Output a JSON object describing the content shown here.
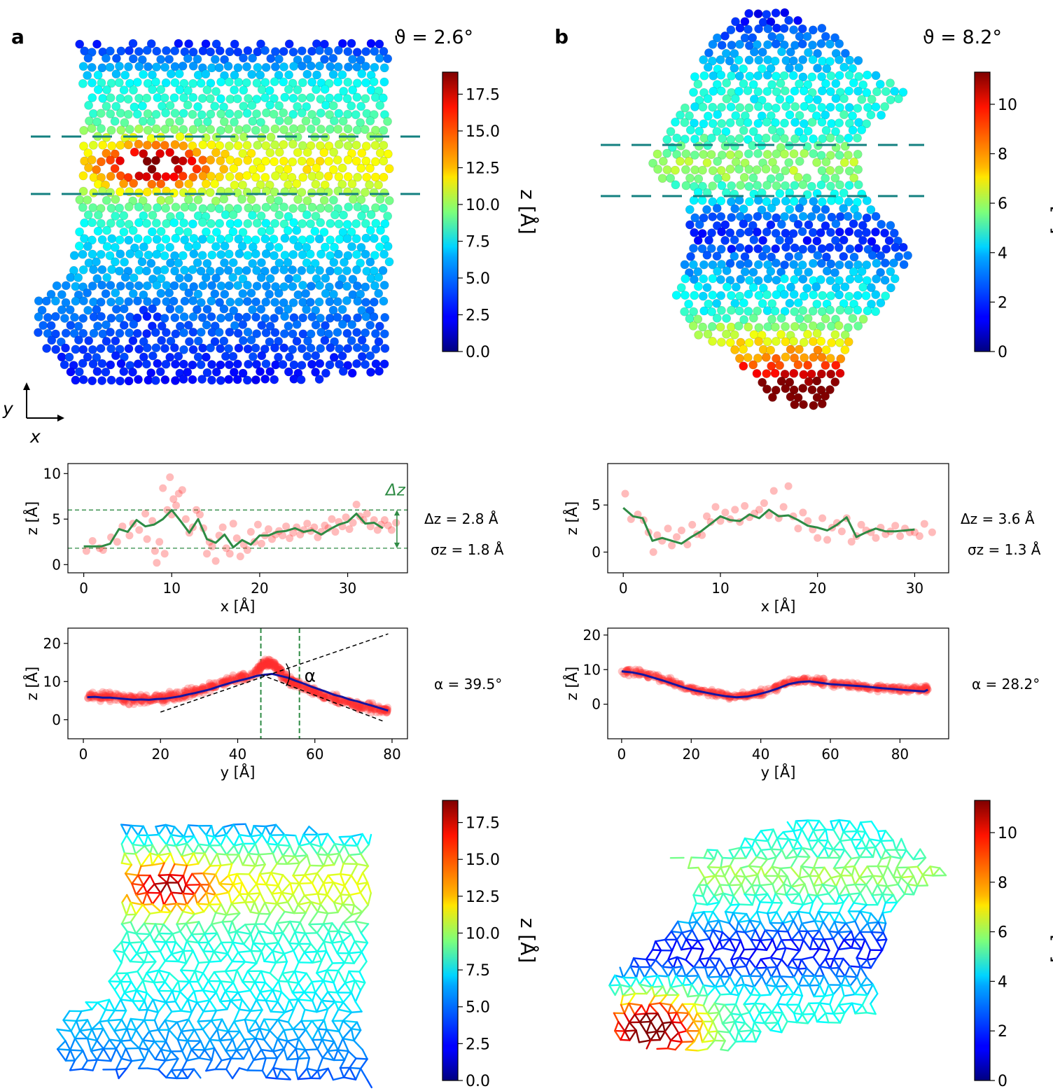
{
  "panels": {
    "a": {
      "letter": "a",
      "theta": "ϑ = 2.6°",
      "axis_indicator": {
        "x": "x",
        "y": "y"
      },
      "stats": {
        "dz": "Δz = 2.8 Å",
        "sigma": "σz = 1.8 Å",
        "alpha": "α = 39.5°"
      },
      "delta_z_label": "Δz",
      "alpha_label": "α"
    },
    "b": {
      "letter": "b",
      "theta": "ϑ = 8.2°",
      "stats": {
        "dz": "Δz = 3.6 Å",
        "sigma": "σz = 1.3 Å",
        "alpha": "α = 28.2°"
      }
    }
  },
  "colors": {
    "points": "#ff3030",
    "x_fit": "#2e8b44",
    "y_fit": "#1515a0",
    "guide": "#2e8b44",
    "cut_lines": "#138080"
  },
  "colormap": "jet",
  "chart_data": [
    {
      "id": "a-colorbar",
      "type": "heatmap",
      "label": "z [Å]",
      "range": [
        0,
        19
      ],
      "ticks": [
        0.0,
        2.5,
        5.0,
        7.5,
        10.0,
        12.5,
        15.0,
        17.5
      ],
      "tick_labels": [
        "0.0",
        "2.5",
        "5.0",
        "7.5",
        "10.0",
        "12.5",
        "15.0",
        "17.5"
      ]
    },
    {
      "id": "b-colorbar",
      "type": "heatmap",
      "label": "z [Å]",
      "range": [
        0,
        11.3
      ],
      "ticks": [
        0,
        2,
        4,
        6,
        8,
        10
      ],
      "tick_labels": [
        "0",
        "2",
        "4",
        "6",
        "8",
        "10"
      ]
    },
    {
      "id": "a-x-profile",
      "type": "scatter",
      "xlabel": "x [Å]",
      "ylabel": "z [Å]",
      "xlim": [
        -1.8,
        36.8
      ],
      "ylim": [
        -0.9,
        11.1
      ],
      "xticks": [
        0,
        10,
        20,
        30
      ],
      "yticks": [
        0,
        5,
        10
      ],
      "hlines": [
        1.8,
        6.0
      ],
      "series": [
        {
          "kind": "points",
          "x": [
            0.3,
            1,
            1.8,
            2.2,
            3.1,
            3.8,
            4.4,
            5.2,
            5.6,
            6.3,
            7,
            7.2,
            7.8,
            8.1,
            8.3,
            8.6,
            9,
            9.2,
            9.5,
            9.8,
            10,
            10.2,
            10.5,
            10.8,
            11.2,
            11.6,
            12,
            12.4,
            12.8,
            13.2,
            13.6,
            14,
            14.3,
            14.6,
            15,
            15.4,
            15.8,
            16.2,
            16.6,
            17,
            17.4,
            17.8,
            18.2,
            18.6,
            19,
            19.4,
            19.8,
            20.2,
            20.6,
            21,
            21.4,
            21.8,
            22.2,
            22.6,
            23,
            23.4,
            23.8,
            24.2,
            24.6,
            25,
            25.4,
            25.8,
            26.2,
            26.6,
            27,
            27.4,
            27.8,
            28.2,
            28.6,
            29,
            29.4,
            29.8,
            30.2,
            30.6,
            31,
            31.4,
            31.8,
            32.2,
            32.6,
            33,
            33.4,
            33.8,
            34.2,
            34.6,
            35,
            35.5
          ],
          "y": [
            1.5,
            2.6,
            1.8,
            1.6,
            3,
            2.5,
            4.2,
            3.2,
            4.5,
            3.8,
            5.6,
            2.8,
            4.8,
            1.5,
            0.2,
            2.5,
            8.4,
            1.2,
            6,
            9.6,
            5.5,
            7.2,
            6.5,
            7.8,
            8.2,
            5,
            3.5,
            4.1,
            6,
            5.5,
            4,
            1.2,
            2.5,
            2,
            0.4,
            3.2,
            4.1,
            1.8,
            1.2,
            4.5,
            2.9,
            0.9,
            2.2,
            1.6,
            3.6,
            2.5,
            4.4,
            2.3,
            3.2,
            3.9,
            2.8,
            3.3,
            3.7,
            3.2,
            4.2,
            2.9,
            3.5,
            4.1,
            3.3,
            3.8,
            4.5,
            3.7,
            4.1,
            3,
            3.6,
            4.3,
            4,
            5,
            3.6,
            4.7,
            4.2,
            5.2,
            3.9,
            4.6,
            6.6,
            5.3,
            4.9,
            5.6,
            4.2,
            4.9,
            3.8,
            4.4,
            4.9,
            4.3,
            3.8,
            4.6
          ]
        },
        {
          "kind": "line",
          "x": [
            0,
            1,
            2,
            3,
            4,
            5,
            6,
            7,
            8,
            9,
            10,
            11,
            12,
            13,
            14,
            15,
            16,
            17,
            18,
            19,
            20,
            21,
            22,
            23,
            24,
            25,
            26,
            27,
            28,
            29,
            30,
            31,
            32,
            33,
            34
          ],
          "y": [
            2,
            2,
            2,
            2.3,
            3.9,
            3.6,
            4.9,
            4.2,
            4.4,
            5,
            6,
            4.8,
            3.5,
            5,
            2.8,
            2.4,
            3.3,
            1.9,
            2.7,
            2.2,
            3.2,
            3.2,
            3.6,
            3.7,
            4,
            3.6,
            3.8,
            3.3,
            3.9,
            4.4,
            4.7,
            5.6,
            4.5,
            4.6,
            4
          ]
        }
      ]
    },
    {
      "id": "a-y-profile",
      "type": "scatter",
      "xlabel": "y [Å]",
      "ylabel": "z [Å]",
      "xlim": [
        -4,
        84
      ],
      "ylim": [
        -5,
        24
      ],
      "xticks": [
        0,
        20,
        40,
        60,
        80
      ],
      "yticks": [
        0,
        10,
        20
      ],
      "vlines": [
        46,
        56
      ],
      "series": [
        {
          "kind": "points_band",
          "x": [
            1,
            3,
            5,
            7,
            9,
            11,
            13,
            15,
            17,
            19,
            21,
            23,
            25,
            27,
            29,
            31,
            33,
            35,
            37,
            39,
            41,
            43,
            45,
            46,
            47,
            48,
            49,
            50,
            51,
            52,
            53,
            54,
            55,
            56,
            58,
            60,
            62,
            64,
            66,
            68,
            70,
            72,
            74,
            76,
            78,
            79
          ],
          "y": [
            6,
            6.3,
            6,
            6.1,
            5.7,
            5.5,
            5.2,
            5.5,
            5.4,
            5.8,
            5.7,
            6.3,
            6.3,
            7.2,
            7.1,
            7.9,
            8.4,
            9.3,
            10,
            10.5,
            11.3,
            11.6,
            12.6,
            13.8,
            14.5,
            14.9,
            14.5,
            13.7,
            12.6,
            11.4,
            10.7,
            10.2,
            9.6,
            9.1,
            8,
            7.4,
            6.4,
            5.6,
            5.1,
            4.9,
            4.2,
            3.5,
            3.3,
            2.9,
            2.6,
            2.4
          ]
        },
        {
          "kind": "line",
          "x": [
            1,
            3,
            5,
            7,
            9,
            11,
            13,
            15,
            17,
            19,
            21,
            23,
            25,
            27,
            29,
            31,
            33,
            35,
            37,
            39,
            41,
            43,
            45,
            47,
            49,
            51,
            53,
            55,
            57,
            59,
            61,
            63,
            65,
            67,
            69,
            71,
            73,
            75,
            77,
            79
          ],
          "y": [
            5.9,
            6,
            5.8,
            5.8,
            5.6,
            5.4,
            5.2,
            5.3,
            5.2,
            5.4,
            5.5,
            5.8,
            6.1,
            6.6,
            7,
            7.5,
            8,
            8.7,
            9.3,
            9.9,
            10.4,
            10.9,
            11.5,
            11.8,
            12,
            11.5,
            11,
            10.2,
            9.5,
            8.7,
            8,
            7.3,
            6.5,
            6,
            5.3,
            4.8,
            4.2,
            3.6,
            3,
            2.4
          ]
        },
        {
          "kind": "tangent",
          "x": [
            20,
            79
          ],
          "y": [
            2,
            22.5
          ]
        },
        {
          "kind": "tangent",
          "x": [
            46,
            78
          ],
          "y": [
            11.8,
            -0.5
          ]
        }
      ]
    },
    {
      "id": "b-x-profile",
      "type": "scatter",
      "xlabel": "x [Å]",
      "ylabel": "z [Å]",
      "xlim": [
        -1.6,
        33.5
      ],
      "ylim": [
        -2.2,
        9.4
      ],
      "xticks": [
        0,
        10,
        20,
        30
      ],
      "yticks": [
        0,
        5
      ],
      "series": [
        {
          "kind": "points",
          "x": [
            0.2,
            0.8,
            1.5,
            2.1,
            2.6,
            3.1,
            3.5,
            4,
            4.6,
            5,
            5.5,
            6,
            6.6,
            7.1,
            7.6,
            8.1,
            8.6,
            9,
            9.5,
            10,
            10.5,
            11,
            11.5,
            12,
            12.5,
            13,
            13.5,
            14,
            14.5,
            15,
            15.5,
            16,
            16.5,
            17,
            17.5,
            18,
            18.5,
            19,
            19.5,
            20,
            20.5,
            21,
            21.5,
            22,
            22.5,
            23,
            23.5,
            24,
            24.5,
            25,
            25.5,
            26,
            26.5,
            27,
            27.5,
            28,
            28.5,
            29,
            29.5,
            30,
            30.5,
            31,
            31.8
          ],
          "y": [
            6.2,
            3.5,
            4,
            3.4,
            2.1,
            0,
            1.8,
            1.2,
            2.5,
            0.7,
            1.6,
            2.3,
            0.8,
            2.9,
            1.9,
            1.8,
            3.8,
            3.2,
            4.8,
            3.3,
            4.2,
            3.5,
            4.5,
            3.2,
            4.9,
            3.7,
            4.1,
            4.5,
            5.2,
            3.9,
            6.5,
            3.6,
            4.8,
            7,
            3.8,
            2.5,
            4.2,
            3.3,
            2.4,
            1.5,
            3.6,
            1.3,
            2.6,
            3.1,
            2.2,
            3.6,
            1.1,
            1.7,
            2.9,
            2.3,
            2.1,
            1.5,
            2.6,
            1.9,
            2.2,
            2.8,
            1.7,
            2.5,
            2.1,
            2.1,
            1.7,
            3,
            2.1
          ]
        },
        {
          "kind": "line",
          "x": [
            0,
            1,
            2,
            3,
            4,
            5,
            6,
            7,
            8,
            9,
            10,
            11,
            12,
            13,
            14,
            15,
            16,
            17,
            18,
            19,
            20,
            21,
            22,
            23,
            24,
            25,
            26,
            27,
            28,
            29,
            30
          ],
          "y": [
            4.7,
            3.8,
            3.6,
            1.2,
            1.5,
            1.2,
            0.9,
            1.6,
            2.2,
            3,
            3.8,
            3.4,
            3.3,
            4,
            3.6,
            4.5,
            3.8,
            3.9,
            3.4,
            2.8,
            2.6,
            2.3,
            2.9,
            3.7,
            1.6,
            2.1,
            2.5,
            2.2,
            2.2,
            2.3,
            2.4
          ]
        }
      ]
    },
    {
      "id": "b-y-profile",
      "type": "scatter",
      "xlabel": "y [Å]",
      "ylabel": "z [Å]",
      "xlim": [
        -4,
        94
      ],
      "ylim": [
        -10,
        22
      ],
      "xticks": [
        0,
        20,
        40,
        60,
        80
      ],
      "yticks": [
        0,
        10,
        20
      ],
      "series": [
        {
          "kind": "points_band",
          "x": [
            0,
            3,
            6,
            9,
            12,
            15,
            18,
            21,
            24,
            27,
            30,
            33,
            36,
            39,
            42,
            45,
            48,
            51,
            54,
            57,
            60,
            63,
            66,
            69,
            72,
            75,
            78,
            81,
            84,
            87,
            88
          ],
          "y": [
            9.5,
            9.4,
            8.8,
            8,
            7.2,
            6.2,
            5,
            4.2,
            3.6,
            3.1,
            2.6,
            2.2,
            2.5,
            3.1,
            4,
            5,
            6.3,
            6.9,
            7,
            6.4,
            5.8,
            5.8,
            5.5,
            5.1,
            5,
            4.6,
            4.6,
            4.4,
            4.3,
            4.3,
            4.3
          ]
        },
        {
          "kind": "line",
          "x": [
            0,
            3,
            6,
            9,
            12,
            15,
            18,
            21,
            24,
            27,
            30,
            33,
            36,
            39,
            42,
            45,
            48,
            51,
            54,
            57,
            60,
            63,
            66,
            69,
            72,
            75,
            78,
            81,
            84,
            87,
            88
          ],
          "y": [
            9.5,
            9.2,
            8.6,
            7.7,
            6.8,
            5.8,
            4.8,
            4,
            3.4,
            2.8,
            2.3,
            2,
            2.2,
            2.8,
            3.6,
            4.6,
            5.8,
            6.4,
            6.6,
            6.2,
            5.8,
            5.6,
            5.4,
            5.2,
            4.9,
            4.6,
            4.4,
            4.1,
            3.9,
            3.7,
            4.2
          ]
        }
      ]
    }
  ]
}
